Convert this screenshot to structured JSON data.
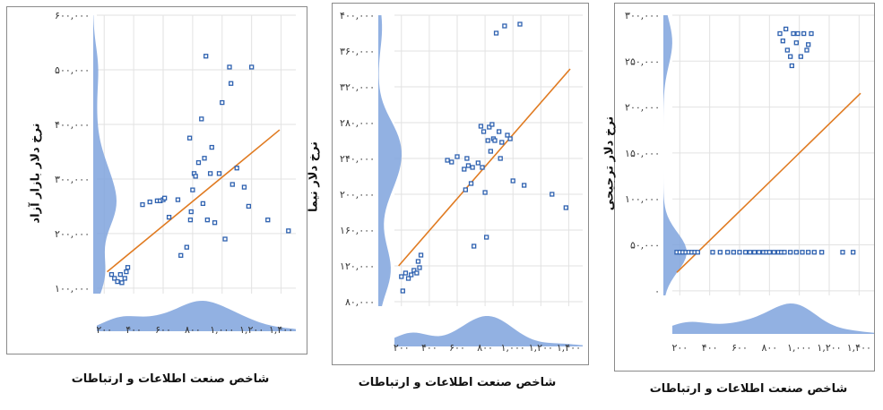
{
  "chart_data": [
    {
      "type": "scatter",
      "xlabel": "شاخص صنعت اطلاعات و ارتباطات",
      "ylabel": "نرخ دلار بازار آزاد",
      "xlim": [
        150,
        1500
      ],
      "ylim": [
        90000,
        600000
      ],
      "xticks": [
        200,
        400,
        600,
        800,
        1000,
        1200,
        1400
      ],
      "xtick_labels": [
        "۲۰۰",
        "۴۰۰",
        "۶۰۰",
        "۸۰۰",
        "۱,۰۰۰",
        "۱,۲۰۰",
        "۱,۴۰۰"
      ],
      "yticks": [
        100000,
        200000,
        300000,
        400000,
        500000,
        600000
      ],
      "ytick_labels": [
        "۱۰۰,۰۰۰",
        "۲۰۰,۰۰۰",
        "۳۰۰,۰۰۰",
        "۴۰۰,۰۰۰",
        "۵۰۰,۰۰۰",
        "۶۰۰,۰۰۰"
      ],
      "grid": true,
      "trendline": {
        "x": [
          220,
          1390
        ],
        "y": [
          130000,
          390000
        ]
      },
      "points": [
        {
          "x": 250,
          "y": 125000
        },
        {
          "x": 270,
          "y": 118000
        },
        {
          "x": 290,
          "y": 112000
        },
        {
          "x": 310,
          "y": 125000
        },
        {
          "x": 320,
          "y": 110000
        },
        {
          "x": 340,
          "y": 118000
        },
        {
          "x": 350,
          "y": 130000
        },
        {
          "x": 360,
          "y": 138000
        },
        {
          "x": 460,
          "y": 253000
        },
        {
          "x": 510,
          "y": 258000
        },
        {
          "x": 560,
          "y": 260000
        },
        {
          "x": 580,
          "y": 260000
        },
        {
          "x": 600,
          "y": 262000
        },
        {
          "x": 610,
          "y": 265000
        },
        {
          "x": 640,
          "y": 230000
        },
        {
          "x": 700,
          "y": 262000
        },
        {
          "x": 720,
          "y": 160000
        },
        {
          "x": 760,
          "y": 175000
        },
        {
          "x": 780,
          "y": 375000
        },
        {
          "x": 785,
          "y": 225000
        },
        {
          "x": 790,
          "y": 240000
        },
        {
          "x": 800,
          "y": 280000
        },
        {
          "x": 810,
          "y": 310000
        },
        {
          "x": 820,
          "y": 305000
        },
        {
          "x": 840,
          "y": 330000
        },
        {
          "x": 860,
          "y": 410000
        },
        {
          "x": 870,
          "y": 255000
        },
        {
          "x": 880,
          "y": 338000
        },
        {
          "x": 890,
          "y": 525000
        },
        {
          "x": 900,
          "y": 225000
        },
        {
          "x": 920,
          "y": 310000
        },
        {
          "x": 930,
          "y": 358000
        },
        {
          "x": 950,
          "y": 220000
        },
        {
          "x": 980,
          "y": 310000
        },
        {
          "x": 1000,
          "y": 440000
        },
        {
          "x": 1020,
          "y": 190000
        },
        {
          "x": 1050,
          "y": 505000
        },
        {
          "x": 1060,
          "y": 475000
        },
        {
          "x": 1070,
          "y": 290000
        },
        {
          "x": 1100,
          "y": 320000
        },
        {
          "x": 1150,
          "y": 285000
        },
        {
          "x": 1180,
          "y": 250000
        },
        {
          "x": 1200,
          "y": 505000
        },
        {
          "x": 1310,
          "y": 225000
        },
        {
          "x": 1450,
          "y": 205000
        }
      ]
    },
    {
      "type": "scatter",
      "xlabel": "شاخص صنعت اطلاعات و ارتباطات",
      "ylabel": "نرخ دلار نیما",
      "xlim": [
        150,
        1500
      ],
      "ylim": [
        75000,
        400000
      ],
      "xticks": [
        200,
        400,
        600,
        800,
        1000,
        1200,
        1400
      ],
      "xtick_labels": [
        "۲۰۰",
        "۴۰۰",
        "۶۰۰",
        "۸۰۰",
        "۱,۰۰۰",
        "۱,۲۰۰",
        "۱,۴۰۰"
      ],
      "yticks": [
        80000,
        120000,
        160000,
        200000,
        240000,
        280000,
        320000,
        360000,
        400000
      ],
      "ytick_labels": [
        "۸۰,۰۰۰",
        "۱۲۰,۰۰۰",
        "۱۶۰,۰۰۰",
        "۲۰۰,۰۰۰",
        "۲۴۰,۰۰۰",
        "۲۸۰,۰۰۰",
        "۳۲۰,۰۰۰",
        "۳۶۰,۰۰۰",
        "۴۰۰,۰۰۰"
      ],
      "grid": true,
      "trendline": {
        "x": [
          180,
          1410
        ],
        "y": [
          120000,
          340000
        ]
      },
      "points": [
        {
          "x": 200,
          "y": 108000
        },
        {
          "x": 210,
          "y": 92000
        },
        {
          "x": 230,
          "y": 112000
        },
        {
          "x": 250,
          "y": 106000
        },
        {
          "x": 270,
          "y": 110000
        },
        {
          "x": 290,
          "y": 115000
        },
        {
          "x": 310,
          "y": 112000
        },
        {
          "x": 320,
          "y": 125000
        },
        {
          "x": 330,
          "y": 118000
        },
        {
          "x": 340,
          "y": 132000
        },
        {
          "x": 530,
          "y": 238000
        },
        {
          "x": 560,
          "y": 236000
        },
        {
          "x": 600,
          "y": 242000
        },
        {
          "x": 650,
          "y": 228000
        },
        {
          "x": 660,
          "y": 205000
        },
        {
          "x": 670,
          "y": 240000
        },
        {
          "x": 680,
          "y": 232000
        },
        {
          "x": 700,
          "y": 212000
        },
        {
          "x": 710,
          "y": 230000
        },
        {
          "x": 720,
          "y": 142000
        },
        {
          "x": 750,
          "y": 235000
        },
        {
          "x": 770,
          "y": 276000
        },
        {
          "x": 780,
          "y": 230000
        },
        {
          "x": 790,
          "y": 270000
        },
        {
          "x": 800,
          "y": 202000
        },
        {
          "x": 810,
          "y": 152000
        },
        {
          "x": 820,
          "y": 260000
        },
        {
          "x": 830,
          "y": 275000
        },
        {
          "x": 840,
          "y": 248000
        },
        {
          "x": 850,
          "y": 278000
        },
        {
          "x": 860,
          "y": 262000
        },
        {
          "x": 870,
          "y": 260000
        },
        {
          "x": 880,
          "y": 380000
        },
        {
          "x": 900,
          "y": 270000
        },
        {
          "x": 910,
          "y": 240000
        },
        {
          "x": 920,
          "y": 258000
        },
        {
          "x": 940,
          "y": 388000
        },
        {
          "x": 960,
          "y": 266000
        },
        {
          "x": 980,
          "y": 262000
        },
        {
          "x": 1000,
          "y": 215000
        },
        {
          "x": 1050,
          "y": 390000
        },
        {
          "x": 1080,
          "y": 210000
        },
        {
          "x": 1280,
          "y": 200000
        },
        {
          "x": 1380,
          "y": 185000
        }
      ]
    },
    {
      "type": "scatter",
      "xlabel": "شاخص صنعت اطلاعات و ارتباطات",
      "ylabel": "نرخ دلار ترجیحی",
      "xlim": [
        150,
        1500
      ],
      "ylim": [
        -5000,
        300000
      ],
      "xticks": [
        200,
        400,
        600,
        800,
        1000,
        1200,
        1400
      ],
      "xtick_labels": [
        "۲۰۰",
        "۴۰۰",
        "۶۰۰",
        "۸۰۰",
        "۱,۰۰۰",
        "۱,۲۰۰",
        "۱,۴۰۰"
      ],
      "yticks": [
        0,
        50000,
        100000,
        150000,
        200000,
        250000,
        300000
      ],
      "ytick_labels": [
        "۰",
        "۵۰,۰۰۰",
        "۱۰۰,۰۰۰",
        "۱۵۰,۰۰۰",
        "۲۰۰,۰۰۰",
        "۲۵۰,۰۰۰",
        "۳۰۰,۰۰۰"
      ],
      "grid": true,
      "trendline": {
        "x": [
          180,
          1410
        ],
        "y": [
          20000,
          215000
        ]
      },
      "points": [
        {
          "x": 180,
          "y": 42000
        },
        {
          "x": 200,
          "y": 42000
        },
        {
          "x": 220,
          "y": 42000
        },
        {
          "x": 240,
          "y": 42000
        },
        {
          "x": 260,
          "y": 42000
        },
        {
          "x": 280,
          "y": 42000
        },
        {
          "x": 300,
          "y": 42000
        },
        {
          "x": 320,
          "y": 42000
        },
        {
          "x": 420,
          "y": 42000
        },
        {
          "x": 470,
          "y": 42000
        },
        {
          "x": 520,
          "y": 42000
        },
        {
          "x": 560,
          "y": 42000
        },
        {
          "x": 600,
          "y": 42000
        },
        {
          "x": 640,
          "y": 42000
        },
        {
          "x": 670,
          "y": 42000
        },
        {
          "x": 700,
          "y": 42000
        },
        {
          "x": 730,
          "y": 42000
        },
        {
          "x": 760,
          "y": 42000
        },
        {
          "x": 780,
          "y": 42000
        },
        {
          "x": 800,
          "y": 42000
        },
        {
          "x": 830,
          "y": 42000
        },
        {
          "x": 860,
          "y": 42000
        },
        {
          "x": 880,
          "y": 42000
        },
        {
          "x": 900,
          "y": 42000
        },
        {
          "x": 940,
          "y": 42000
        },
        {
          "x": 980,
          "y": 42000
        },
        {
          "x": 1020,
          "y": 42000
        },
        {
          "x": 1060,
          "y": 42000
        },
        {
          "x": 1100,
          "y": 42000
        },
        {
          "x": 1150,
          "y": 42000
        },
        {
          "x": 1290,
          "y": 42000
        },
        {
          "x": 1360,
          "y": 42000
        },
        {
          "x": 870,
          "y": 280000
        },
        {
          "x": 890,
          "y": 272000
        },
        {
          "x": 910,
          "y": 285000
        },
        {
          "x": 920,
          "y": 262000
        },
        {
          "x": 940,
          "y": 255000
        },
        {
          "x": 950,
          "y": 245000
        },
        {
          "x": 960,
          "y": 280000
        },
        {
          "x": 980,
          "y": 270000
        },
        {
          "x": 990,
          "y": 280000
        },
        {
          "x": 1010,
          "y": 255000
        },
        {
          "x": 1030,
          "y": 280000
        },
        {
          "x": 1050,
          "y": 262000
        },
        {
          "x": 1060,
          "y": 268000
        },
        {
          "x": 1080,
          "y": 280000
        }
      ]
    }
  ]
}
